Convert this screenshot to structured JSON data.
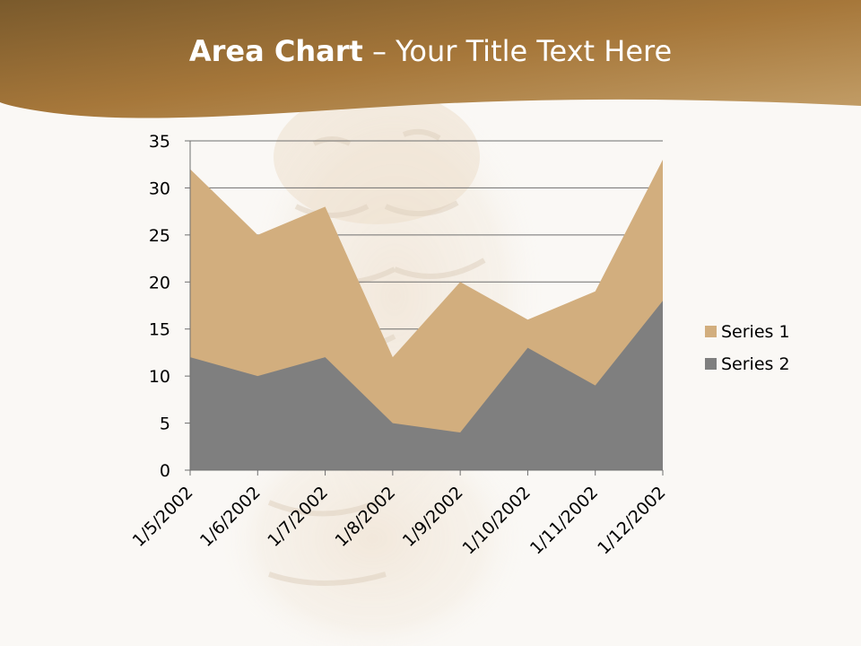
{
  "slide": {
    "title_bold": "Area Chart",
    "title_rest": " – Your Title Text Here"
  },
  "colors": {
    "band_dark": "#7a5a2c",
    "band_light": "#c09a5f",
    "series1": "#d2ae7e",
    "series2": "#7f7f7f",
    "background": "#faf8f5"
  },
  "chart_data": {
    "type": "area",
    "categories": [
      "1/5/2002",
      "1/6/2002",
      "1/7/2002",
      "1/8/2002",
      "1/9/2002",
      "1/10/2002",
      "1/11/2002",
      "1/12/2002"
    ],
    "series": [
      {
        "name": "Series 1",
        "values": [
          32,
          25,
          28,
          12,
          20,
          16,
          19,
          33
        ],
        "color": "#d2ae7e"
      },
      {
        "name": "Series 2",
        "values": [
          12,
          10,
          12,
          5,
          4,
          13,
          9,
          18
        ],
        "color": "#7f7f7f"
      }
    ],
    "ylim": [
      0,
      35
    ],
    "yticks": [
      0,
      5,
      10,
      15,
      20,
      25,
      30,
      35
    ],
    "grid": true,
    "legend": "right"
  }
}
